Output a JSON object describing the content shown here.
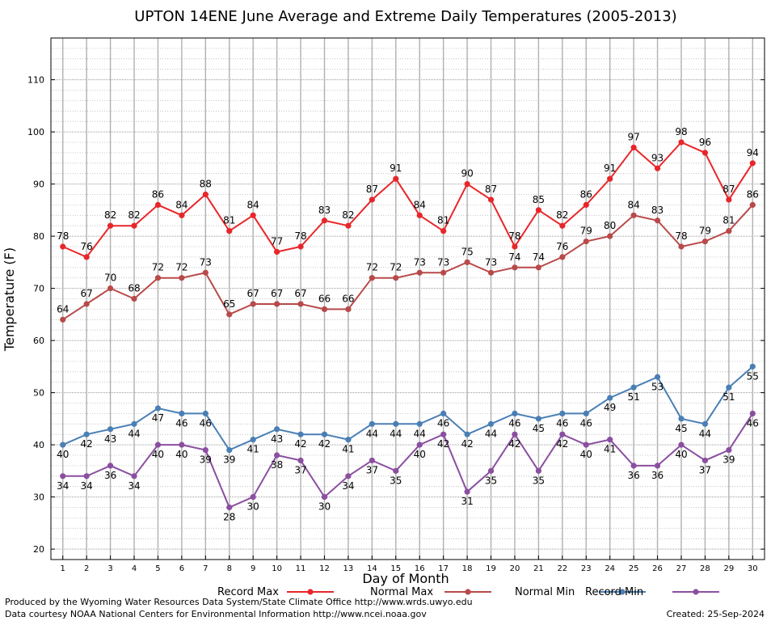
{
  "chart_data": {
    "type": "line",
    "title": "UPTON 14ENE June Average and Extreme Daily Temperatures (2005-2013)",
    "xlabel": "Day of Month",
    "ylabel": "Temperature (F)",
    "x": [
      1,
      2,
      3,
      4,
      5,
      6,
      7,
      8,
      9,
      10,
      11,
      12,
      13,
      14,
      15,
      16,
      17,
      18,
      19,
      20,
      21,
      22,
      23,
      24,
      25,
      26,
      27,
      28,
      29,
      30
    ],
    "xlim": [
      0.5,
      30.5
    ],
    "ylim": [
      18,
      118
    ],
    "yticks": [
      20,
      30,
      40,
      50,
      60,
      70,
      80,
      90,
      100,
      110
    ],
    "grid": true,
    "legend_position": "bottom",
    "series": [
      {
        "name": "Record Max",
        "color": "#e8262a",
        "label_position": "above",
        "values": [
          78,
          76,
          82,
          82,
          86,
          84,
          88,
          81,
          84,
          77,
          78,
          83,
          82,
          87,
          91,
          84,
          81,
          90,
          87,
          78,
          85,
          82,
          86,
          91,
          97,
          93,
          98,
          96,
          87,
          94
        ]
      },
      {
        "name": "Normal Max",
        "color": "#b84a4a",
        "label_position": "above",
        "values": [
          64,
          67,
          70,
          68,
          72,
          72,
          73,
          65,
          67,
          67,
          67,
          66,
          66,
          72,
          72,
          73,
          73,
          75,
          73,
          74,
          74,
          76,
          79,
          80,
          84,
          83,
          78,
          79,
          81,
          86
        ]
      },
      {
        "name": "Normal Min",
        "color": "#4a7fb5",
        "label_position": "below",
        "values": [
          40,
          42,
          43,
          44,
          47,
          46,
          46,
          39,
          41,
          43,
          42,
          42,
          41,
          44,
          44,
          44,
          46,
          42,
          44,
          46,
          45,
          46,
          46,
          49,
          51,
          53,
          45,
          44,
          51,
          55
        ]
      },
      {
        "name": "Record Min",
        "color": "#8a4fa0",
        "label_position": "below",
        "values": [
          34,
          34,
          36,
          34,
          40,
          40,
          39,
          28,
          30,
          38,
          37,
          30,
          34,
          37,
          35,
          40,
          42,
          31,
          35,
          42,
          35,
          42,
          40,
          41,
          36,
          36,
          40,
          37,
          39,
          46
        ]
      }
    ]
  },
  "footer": {
    "produced_by": "Produced by the Wyoming Water Resources Data System/State Climate Office http://www.wrds.uwyo.edu",
    "courtesy": "Data courtesy NOAA National Centers for Environmental Information http://www.ncei.noaa.gov",
    "created": "Created:  25-Sep-2024"
  }
}
